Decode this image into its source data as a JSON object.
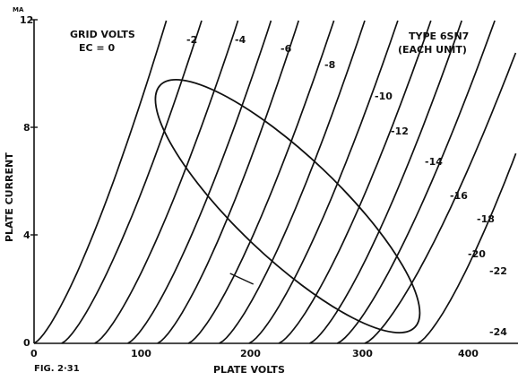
{
  "chart_data": {
    "type": "line",
    "title_left": [
      "GRID VOLTS",
      "EC = 0"
    ],
    "title_right": [
      "TYPE 6SN7",
      "(EACH UNIT)"
    ],
    "xlabel": "PLATE VOLTS",
    "ylabel": "PLATE CURRENT",
    "y_unit": "MA",
    "figure_label": "FIG. 2·31",
    "xlim": [
      0,
      440
    ],
    "ylim": [
      0,
      12
    ],
    "x_ticks": [
      "0",
      "100",
      "200",
      "300",
      "400"
    ],
    "y_ticks": [
      "0",
      "4",
      "8",
      "12"
    ],
    "grid": false,
    "series": [
      {
        "name": "0",
        "x_start": 0,
        "x_at_top": 120
      },
      {
        "name": "-2",
        "x_start": 25,
        "x_at_top": 152
      },
      {
        "name": "-4",
        "x_start": 55,
        "x_at_top": 185
      },
      {
        "name": "-6",
        "x_start": 85,
        "x_at_top": 215
      },
      {
        "name": "-8",
        "x_start": 112,
        "x_at_top": 240
      },
      {
        "name": "-10",
        "x_start": 140,
        "x_at_top": 272
      },
      {
        "name": "-12",
        "x_start": 168,
        "x_at_top": 300
      },
      {
        "name": "-14",
        "x_start": 195,
        "x_at_top": 330
      },
      {
        "name": "-16",
        "x_start": 222,
        "x_at_top": 360
      },
      {
        "name": "-18",
        "x_start": 250,
        "x_at_top": 388
      },
      {
        "name": "-20",
        "x_start": 275,
        "x_at_top": 418
      },
      {
        "name": "-22",
        "x_start": 300,
        "x_at_top": 448
      },
      {
        "name": "-24",
        "x_start": 348,
        "x_at_top": 480
      }
    ],
    "curve_labels": [
      "-2",
      "-4",
      "-6",
      "-8",
      "-10",
      "-12",
      "-14",
      "-16",
      "-18",
      "-20",
      "-22",
      "-24"
    ],
    "load_ellipse": {
      "center_x": 230,
      "center_y": 5.1
    },
    "operating_point": {
      "x": 190,
      "y": 2.4
    }
  }
}
